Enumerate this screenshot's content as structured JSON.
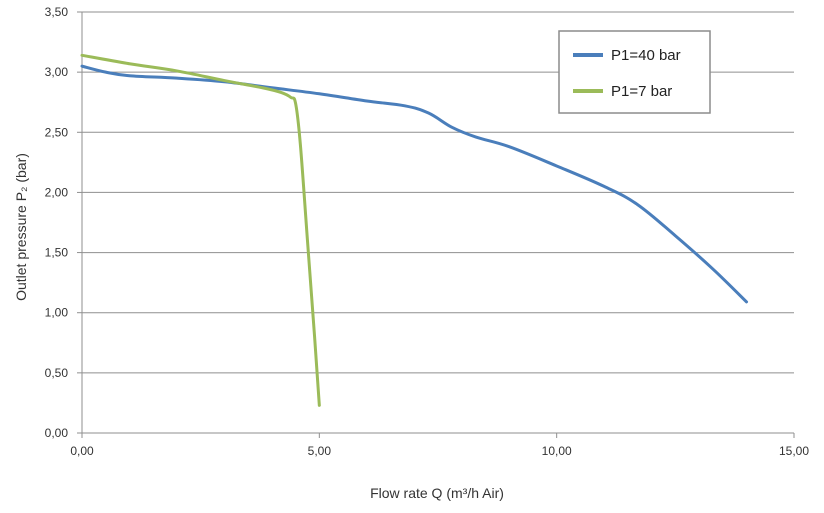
{
  "chart_data": {
    "type": "line",
    "title": "",
    "xlabel": "Flow rate Q (m³/h Air)",
    "ylabel": "Outlet pressure P₂ (bar)",
    "xlim": [
      0,
      15
    ],
    "ylim": [
      0,
      3.5
    ],
    "x_ticks": [
      "0,00",
      "5,00",
      "10,00",
      "15,00"
    ],
    "y_ticks": [
      "0,00",
      "0,50",
      "1,00",
      "1,50",
      "2,00",
      "2,50",
      "3,00",
      "3,50"
    ],
    "grid": "horizontal",
    "legend_position": "top-right",
    "series": [
      {
        "name": "P1=40 bar",
        "color": "#4a7ebb",
        "points": [
          [
            0,
            3.05
          ],
          [
            0.5,
            3.0
          ],
          [
            1.0,
            2.97
          ],
          [
            2.0,
            2.95
          ],
          [
            3.0,
            2.92
          ],
          [
            4.0,
            2.87
          ],
          [
            5.0,
            2.82
          ],
          [
            6.0,
            2.76
          ],
          [
            6.8,
            2.72
          ],
          [
            7.3,
            2.66
          ],
          [
            7.8,
            2.54
          ],
          [
            8.3,
            2.46
          ],
          [
            9.0,
            2.38
          ],
          [
            10.0,
            2.22
          ],
          [
            11.0,
            2.05
          ],
          [
            11.7,
            1.9
          ],
          [
            12.5,
            1.64
          ],
          [
            13.3,
            1.36
          ],
          [
            14.0,
            1.09
          ]
        ]
      },
      {
        "name": "P1=7 bar",
        "color": "#9bbb59",
        "points": [
          [
            0,
            3.14
          ],
          [
            1.0,
            3.07
          ],
          [
            2.0,
            3.01
          ],
          [
            3.0,
            2.93
          ],
          [
            3.8,
            2.87
          ],
          [
            4.2,
            2.83
          ],
          [
            4.4,
            2.79
          ],
          [
            4.5,
            2.74
          ],
          [
            4.6,
            2.4
          ],
          [
            4.75,
            1.6
          ],
          [
            4.9,
            0.8
          ],
          [
            5.0,
            0.23
          ]
        ]
      }
    ]
  }
}
